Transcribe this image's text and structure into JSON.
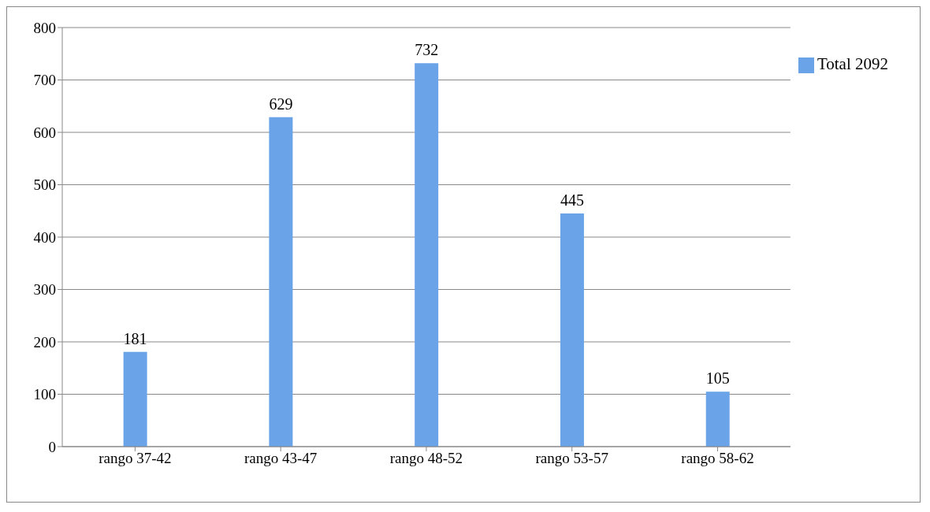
{
  "chart_data": {
    "type": "bar",
    "categories": [
      "rango 37-42",
      "rango 43-47",
      "rango 48-52",
      "rango 53-57",
      "rango 58-62"
    ],
    "series": [
      {
        "name": "Total 2092",
        "color": "#6aa3e8",
        "values": [
          181,
          629,
          732,
          445,
          105
        ]
      }
    ],
    "ylim": [
      0,
      800
    ],
    "yticks": [
      0,
      100,
      200,
      300,
      400,
      500,
      600,
      700,
      800
    ],
    "grid": "y",
    "legend": "top right",
    "data_labels": true
  }
}
